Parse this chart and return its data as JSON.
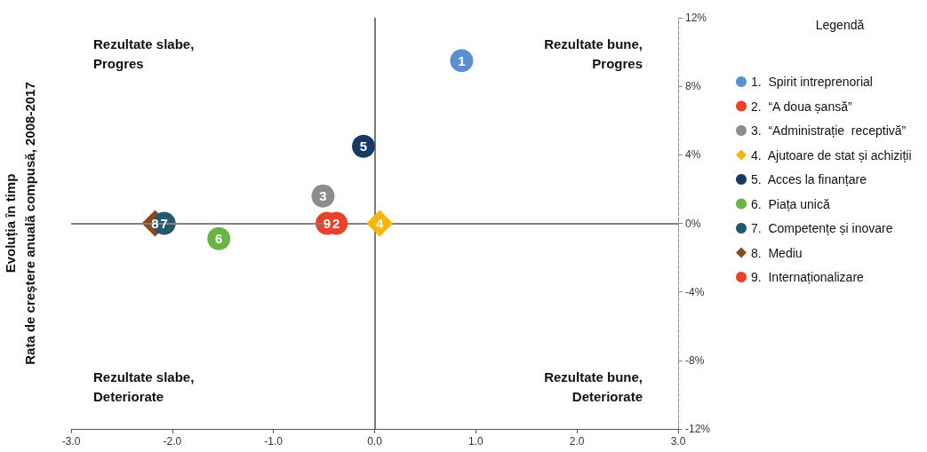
{
  "chart_data": {
    "type": "scatter",
    "ylabel": "Evoluția în timp\nRata de creștere anuală compusă, 2008-2017",
    "legend_title": "Legendă",
    "legend": "right",
    "annotations": [
      "Rezultate slabe,\nProgres",
      "Rezultate bune,\nProgres",
      "Rezultate slabe,\nDeteriorate",
      "Rezultate bune,\nDeteriorate",
      {
        "text": "1",
        "x": 0.86,
        "y": 9.5
      },
      {
        "text": "2",
        "x": -0.38,
        "y": 0
      },
      {
        "text": "3",
        "x": -0.51,
        "y": 1.6
      },
      {
        "text": "4",
        "x": 0.05,
        "y": 0
      },
      {
        "text": "5",
        "x": -0.11,
        "y": 4.5
      },
      {
        "text": "6",
        "x": -1.54,
        "y": -0.9
      },
      {
        "text": "7",
        "x": -2.08,
        "y": 0
      },
      {
        "text": "8",
        "x": -2.17,
        "y": 0
      },
      {
        "text": "9",
        "x": -0.47,
        "y": 0
      }
    ],
    "xlim": [
      -3,
      3
    ],
    "xticks": [
      {
        "value": -3,
        "label": "-3.0"
      },
      {
        "value": -2,
        "label": "-2.0"
      },
      {
        "value": -1,
        "label": "-1.0"
      },
      {
        "value": 0,
        "label": "0.0"
      },
      {
        "value": 1,
        "label": "1.0"
      },
      {
        "value": 2,
        "label": "2.0"
      },
      {
        "value": 3,
        "label": "3.0"
      }
    ],
    "ylim": [
      -12,
      12
    ],
    "yticks": [
      {
        "value": -12,
        "label": "-12%"
      },
      {
        "value": -8,
        "label": "-8%"
      },
      {
        "value": -4,
        "label": "-4%"
      },
      {
        "value": 0,
        "label": "0%"
      },
      {
        "value": 4,
        "label": "4%"
      },
      {
        "value": 8,
        "label": "8%"
      },
      {
        "value": 12,
        "label": "12%"
      }
    ],
    "grid": false,
    "ref_lines": [
      {
        "axis": "x",
        "value": 0,
        "color": "#7a7a7a"
      },
      {
        "axis": "y",
        "value": 0,
        "color": "#808080"
      }
    ],
    "series": [
      {
        "name": "1.  Spirit intreprenorial",
        "color": "#5b8fd0",
        "marker": "circle",
        "x": [
          0.86
        ],
        "values": [
          9.5
        ]
      },
      {
        "name": "2.  “A doua șansă”",
        "color": "#e8432a",
        "marker": "circle",
        "x": [
          -0.38
        ],
        "values": [
          0
        ]
      },
      {
        "name": "3.  “Administrație  receptivă”",
        "color": "#8c8c8c",
        "marker": "circle",
        "x": [
          -0.51
        ],
        "values": [
          1.6
        ]
      },
      {
        "name": "4.  Ajutoare de stat și achiziții",
        "color": "#f5b70f",
        "marker": "diamond",
        "x": [
          0.05
        ],
        "values": [
          0
        ]
      },
      {
        "name": "5.  Acces la finanțare",
        "color": "#173a63",
        "marker": "circle",
        "x": [
          -0.11
        ],
        "values": [
          4.5
        ]
      },
      {
        "name": "6.  Piața unică",
        "color": "#6ab446",
        "marker": "circle",
        "x": [
          -1.54
        ],
        "values": [
          -0.9
        ]
      },
      {
        "name": "7.  Competențe și inovare",
        "color": "#22596e",
        "marker": "circle",
        "x": [
          -2.08
        ],
        "values": [
          0
        ]
      },
      {
        "name": "8.  Mediu",
        "color": "#8a4a1e",
        "marker": "diamond",
        "x": [
          -2.17
        ],
        "values": [
          0
        ]
      },
      {
        "name": "9.  Internaționalizare",
        "color": "#e8432a",
        "marker": "circle",
        "x": [
          -0.47
        ],
        "values": [
          0
        ]
      }
    ]
  }
}
